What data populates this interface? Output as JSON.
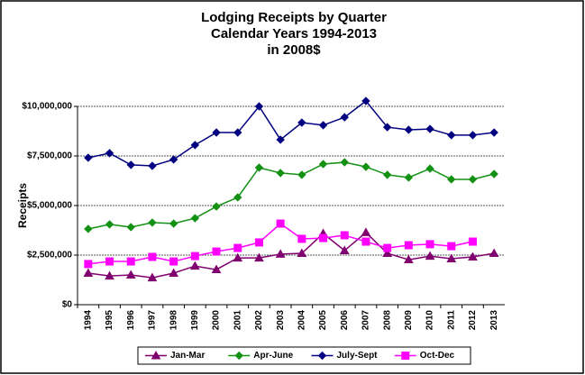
{
  "chart_data": {
    "type": "line",
    "title": [
      "Lodging Receipts by Quarter",
      "Calendar Years 1994-2013",
      "in 2008$"
    ],
    "y_label": "Receipts",
    "categories": [
      "1994",
      "1995",
      "1996",
      "1997",
      "1998",
      "1999",
      "2000",
      "2001",
      "2002",
      "2003",
      "2004",
      "2005",
      "2006",
      "2007",
      "2008",
      "2009",
      "2010",
      "2011",
      "2012",
      "2013"
    ],
    "ylim": [
      0,
      10000000
    ],
    "yticks": [
      {
        "value": 0,
        "label": "$0"
      },
      {
        "value": 2500000,
        "label": "$2,500,000"
      },
      {
        "value": 5000000,
        "label": "$5,000,000"
      },
      {
        "value": 7500000,
        "label": "$7,500,000"
      },
      {
        "value": 10000000,
        "label": "$10,000,000"
      }
    ],
    "grid": true,
    "legend": "bottom",
    "series": [
      {
        "name": "Jan-Mar",
        "color": "#800070",
        "marker": "triangle",
        "values": [
          1590000,
          1450000,
          1500000,
          1360000,
          1590000,
          1950000,
          1770000,
          2360000,
          2360000,
          2550000,
          2590000,
          3590000,
          2730000,
          3640000,
          2590000,
          2270000,
          2450000,
          2320000,
          2410000,
          2590000
        ]
      },
      {
        "name": "Apr-June",
        "color": "#139113",
        "marker": "diamond",
        "values": [
          3820000,
          4050000,
          3910000,
          4140000,
          4090000,
          4360000,
          4950000,
          5410000,
          6910000,
          6640000,
          6550000,
          7090000,
          7180000,
          6950000,
          6550000,
          6410000,
          6860000,
          6320000,
          6320000,
          6590000
        ]
      },
      {
        "name": "July-Sept",
        "color": "#000080",
        "marker": "diamond",
        "values": [
          7410000,
          7640000,
          7050000,
          7000000,
          7320000,
          8050000,
          8680000,
          8680000,
          10000000,
          8320000,
          9180000,
          9050000,
          9450000,
          10270000,
          8950000,
          8820000,
          8860000,
          8550000,
          8550000,
          8680000
        ]
      },
      {
        "name": "Oct-Dec",
        "color": "#ff00ff",
        "marker": "square",
        "values": [
          2050000,
          2180000,
          2180000,
          2410000,
          2180000,
          2450000,
          2680000,
          2860000,
          3140000,
          4090000,
          3320000,
          3360000,
          3500000,
          3180000,
          2860000,
          3000000,
          3050000,
          2950000,
          3180000,
          null
        ]
      }
    ]
  }
}
